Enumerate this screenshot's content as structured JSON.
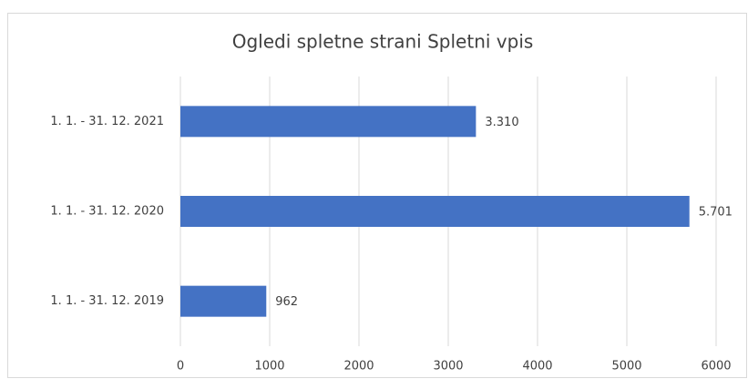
{
  "chart_data": {
    "type": "bar",
    "orientation": "horizontal",
    "title": "Ogledi spletne strani Spletni vpis",
    "categories": [
      "1. 1. - 31. 12. 2021",
      "1. 1. - 31. 12. 2020",
      "1. 1. - 31. 12. 2019"
    ],
    "values": [
      3310,
      5701,
      962
    ],
    "value_labels": [
      "3.310",
      "5.701",
      "962"
    ],
    "color": "#4472c4",
    "xlim": [
      0,
      6000
    ],
    "xticks": [
      0,
      1000,
      2000,
      3000,
      4000,
      5000,
      6000
    ],
    "grid": true
  }
}
